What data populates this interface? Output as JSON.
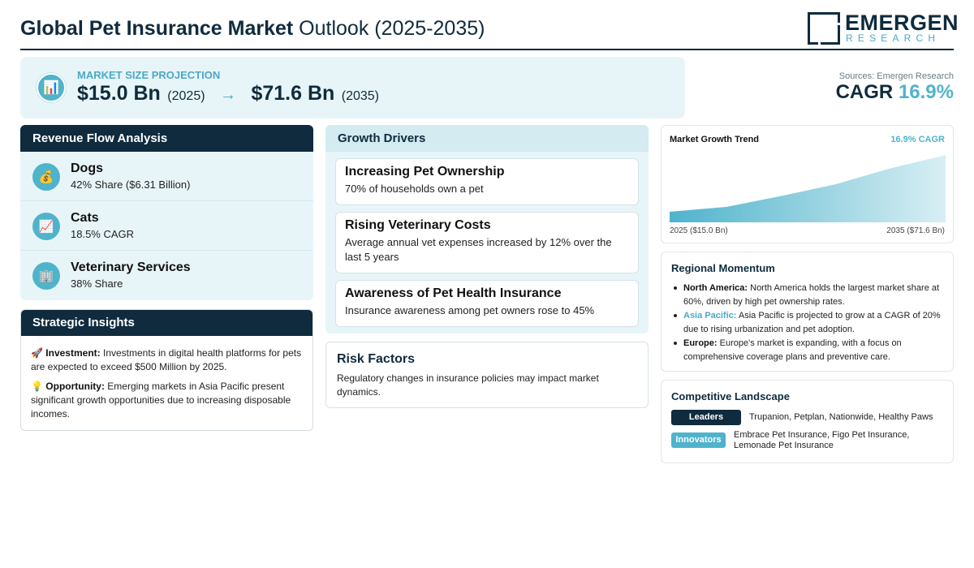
{
  "header": {
    "title_bold": "Global Pet Insurance Market",
    "title_rest": " Outlook (2025-2035)",
    "logo_main": "EMERGEN",
    "logo_sub": "RESEARCH"
  },
  "projection": {
    "icon": "bar-chart-icon",
    "label": "MARKET SIZE PROJECTION",
    "start_value": "$15.0 Bn",
    "start_year": "(2025)",
    "arrow": "→",
    "end_value": "$71.6 Bn",
    "end_year": "(2035)"
  },
  "cagr": {
    "source": "Sources: Emergen Research",
    "label": "CAGR",
    "value": "16.9%"
  },
  "revenue": {
    "heading": "Revenue Flow Analysis",
    "items": [
      {
        "icon": "money-bag-icon",
        "glyph": "💰",
        "name": "Dogs",
        "detail": "42% Share ($6.31 Billion)"
      },
      {
        "icon": "trend-up-icon",
        "glyph": "📈",
        "name": "Cats",
        "detail": "18.5% CAGR"
      },
      {
        "icon": "building-icon",
        "glyph": "🏢",
        "name": "Veterinary Services",
        "detail": "38% Share"
      }
    ]
  },
  "strategic": {
    "heading": "Strategic Insights",
    "items": [
      {
        "icon": "rocket-icon",
        "glyph": "🚀",
        "label": "Investment:",
        "text": " Investments in digital health platforms for pets are expected to exceed $500 Million by 2025."
      },
      {
        "icon": "lightbulb-icon",
        "glyph": "💡",
        "label": "Opportunity:",
        "text": " Emerging markets in Asia Pacific present significant growth opportunities due to increasing disposable incomes."
      }
    ]
  },
  "growth": {
    "heading": "Growth Drivers",
    "items": [
      {
        "title": "Increasing Pet Ownership",
        "text": "70% of households own a pet"
      },
      {
        "title": "Rising Veterinary Costs",
        "text": "Average annual vet expenses increased by 12% over the last 5 years"
      },
      {
        "title": "Awareness of Pet Health Insurance",
        "text": "Insurance awareness among pet owners rose to 45%"
      }
    ]
  },
  "risk": {
    "title": "Risk Factors",
    "text": "Regulatory changes in insurance policies may impact market dynamics."
  },
  "trend": {
    "title": "Market Growth Trend",
    "cagr": "16.9% CAGR",
    "start_label": "2025 ($15.0 Bn)",
    "end_label": "2035 ($71.6 Bn)",
    "colors": {
      "fill_start": "#4fb3cc",
      "fill_end": "#d8eff4"
    }
  },
  "regional": {
    "title": "Regional Momentum",
    "items": [
      {
        "label": "North America:",
        "text": " North America holds the largest market share at 60%, driven by high pet ownership rates."
      },
      {
        "label": "Asia Pacific:",
        "text": " Asia Pacific is projected to grow at a CAGR of 20% due to rising urbanization and pet adoption."
      },
      {
        "label": "Europe:",
        "text": " Europe's market is expanding, with a focus on comprehensive coverage plans and preventive care."
      }
    ]
  },
  "competitive": {
    "title": "Competitive Landscape",
    "leaders_label": "Leaders",
    "leaders": "Trupanion, Petplan, Nationwide, Healthy Paws",
    "innovators_label": "Innovators",
    "innovators": "Embrace Pet Insurance, Figo Pet Insurance, Lemonade Pet Insurance"
  },
  "colors": {
    "navy": "#0f2b3d",
    "teal": "#4fb3cc",
    "light_bg": "#e8f5f8"
  }
}
